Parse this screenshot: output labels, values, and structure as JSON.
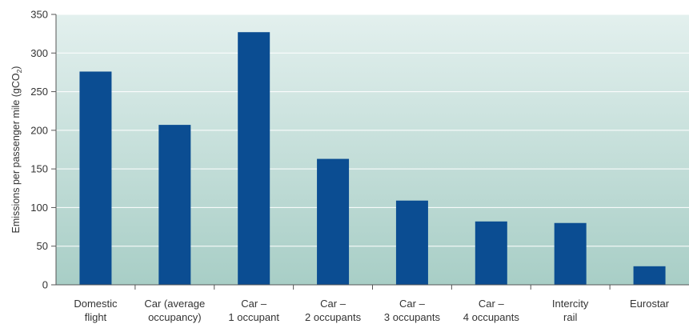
{
  "chart_data": {
    "type": "bar",
    "title": "",
    "xlabel": "",
    "ylabel": "Emissions per passenger mile (gCO",
    "ylabel_subscript": "2",
    "ylabel_suffix": ")",
    "categories": [
      [
        "Domestic",
        "flight"
      ],
      [
        "Car (average",
        "occupancy)"
      ],
      [
        "Car –",
        "1 occupant"
      ],
      [
        "Car –",
        "2 occupants"
      ],
      [
        "Car –",
        "3 occupants"
      ],
      [
        "Car –",
        "4 occupants"
      ],
      [
        "Intercity",
        "rail"
      ],
      [
        "Eurostar"
      ]
    ],
    "values": [
      276,
      207,
      327,
      163,
      109,
      82,
      80,
      24
    ],
    "ylim": [
      0,
      350
    ],
    "yticks": [
      0,
      50,
      100,
      150,
      200,
      250,
      300,
      350
    ],
    "grid": true,
    "legend": "none",
    "colors": {
      "bar": "#0b4d92",
      "gradient_top": "#e3f0ee",
      "gradient_bottom": "#a8cec6",
      "grid": "#ffffff",
      "axis": "#555555"
    }
  }
}
